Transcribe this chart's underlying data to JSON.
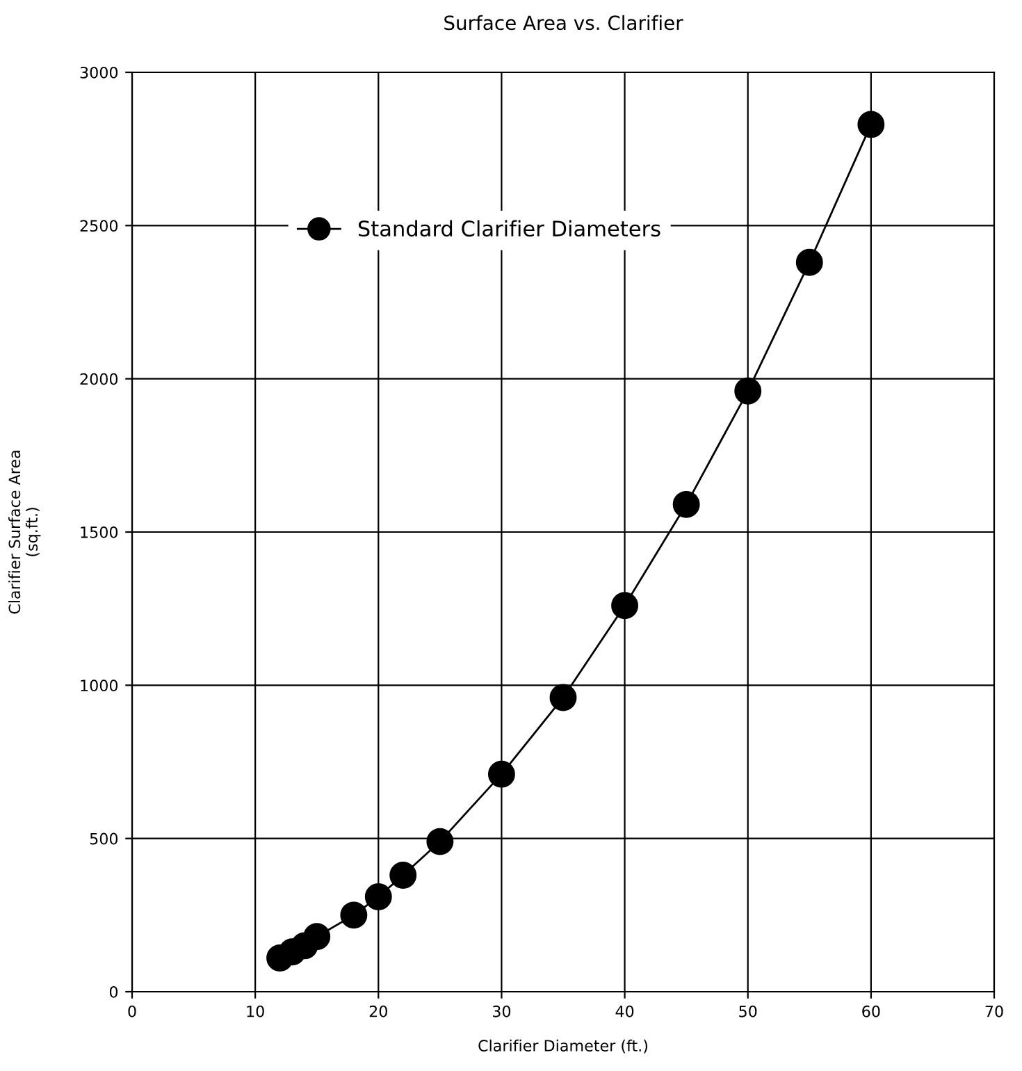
{
  "chart_data": {
    "type": "line",
    "title": "Surface Area vs. Clarifier",
    "xlabel": "Clarifier Diameter (ft.)",
    "ylabel": "Clarifier Surface Area\n(sq.ft.)",
    "x": [
      12,
      13,
      14,
      15,
      18,
      20,
      22,
      25,
      30,
      35,
      40,
      45,
      50,
      55,
      60
    ],
    "series": [
      {
        "name": "Standard Clarifier Diameters",
        "color": "#000000",
        "values": [
          110,
          130,
          150,
          180,
          250,
          310,
          380,
          490,
          710,
          960,
          1260,
          1590,
          1960,
          2380,
          2830
        ]
      }
    ],
    "xlim": [
      0,
      70
    ],
    "xticks": [
      0,
      10,
      20,
      30,
      40,
      50,
      60,
      70
    ],
    "ylim": [
      0,
      3000
    ],
    "yticks": [
      0,
      500,
      1000,
      1500,
      2000,
      2500,
      3000
    ],
    "grid": true,
    "legend": "top left",
    "marker": "circle",
    "line_style": "solid"
  }
}
